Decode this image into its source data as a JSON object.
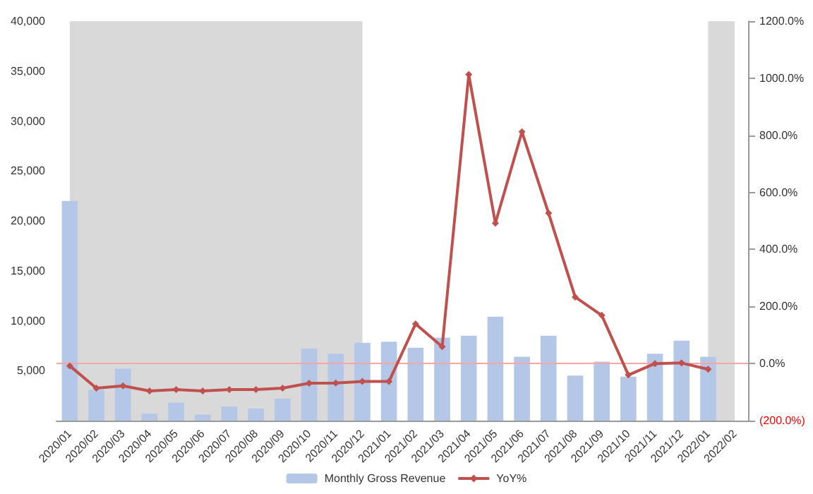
{
  "chart_data": {
    "type": "bar",
    "categories": [
      "2020/01",
      "2020/02",
      "2020/03",
      "2020/04",
      "2020/05",
      "2020/06",
      "2020/07",
      "2020/08",
      "2020/09",
      "2020/10",
      "2020/11",
      "2020/12",
      "2021/01",
      "2021/02",
      "2021/03",
      "2021/04",
      "2021/05",
      "2021/06",
      "2021/07",
      "2021/08",
      "2021/09",
      "2021/10",
      "2021/11",
      "2021/12",
      "2022/01",
      "2022/02"
    ],
    "series": [
      {
        "name": "Monthly Gross Revenue",
        "color": "#b4c7e7",
        "values": [
          22000,
          3100,
          5200,
          700,
          1800,
          600,
          1400,
          1200,
          2200,
          7200,
          6700,
          7800,
          7900,
          7300,
          8300,
          8500,
          10400,
          6400,
          8500,
          4500,
          5900,
          4400,
          6700,
          8000,
          6400,
          null
        ]
      },
      {
        "name": "YoY%",
        "type": "line",
        "axis": "y2",
        "color": "#c0504d",
        "marker": "diamond",
        "values": [
          -8,
          -86,
          -78,
          -96,
          -91,
          -96,
          -91,
          -91,
          -86,
          -69,
          -68,
          -63,
          -63,
          139,
          59,
          1013,
          492,
          812,
          527,
          233,
          169,
          -40,
          0,
          2,
          -20,
          null
        ]
      }
    ],
    "ylim": [
      0,
      40000
    ],
    "yticks": [
      {
        "value": 5000,
        "label": "5,000"
      },
      {
        "value": 10000,
        "label": "10,000"
      },
      {
        "value": 15000,
        "label": "15,000"
      },
      {
        "value": 20000,
        "label": "20,000"
      },
      {
        "value": 25000,
        "label": "25,000"
      },
      {
        "value": 30000,
        "label": "30,000"
      },
      {
        "value": 35000,
        "label": "35,000"
      },
      {
        "value": 40000,
        "label": "40,000"
      }
    ],
    "y2lim": [
      -200,
      1200
    ],
    "y2ticks": [
      {
        "value": -200,
        "label": "(200.0%)"
      },
      {
        "value": 0,
        "label": "0.0%"
      },
      {
        "value": 200,
        "label": "200.0%"
      },
      {
        "value": 400,
        "label": "400.0%"
      },
      {
        "value": 600,
        "label": "600.0%"
      },
      {
        "value": 800,
        "label": "800.0%"
      },
      {
        "value": 1000,
        "label": "1000.0%"
      },
      {
        "value": 1200,
        "label": "1200.0%"
      }
    ],
    "bands": [
      {
        "axis": "x",
        "from": "2020/01",
        "to": "2020/12",
        "color": "#d9d9d9"
      },
      {
        "axis": "x",
        "from": "2022/01",
        "to": "2022/02",
        "color": "#d9d9d9"
      }
    ],
    "ref_lines": [
      {
        "axis": "y2",
        "value": 0,
        "color": "#f4a6a6"
      }
    ],
    "grid": false,
    "legend": "bottom"
  }
}
